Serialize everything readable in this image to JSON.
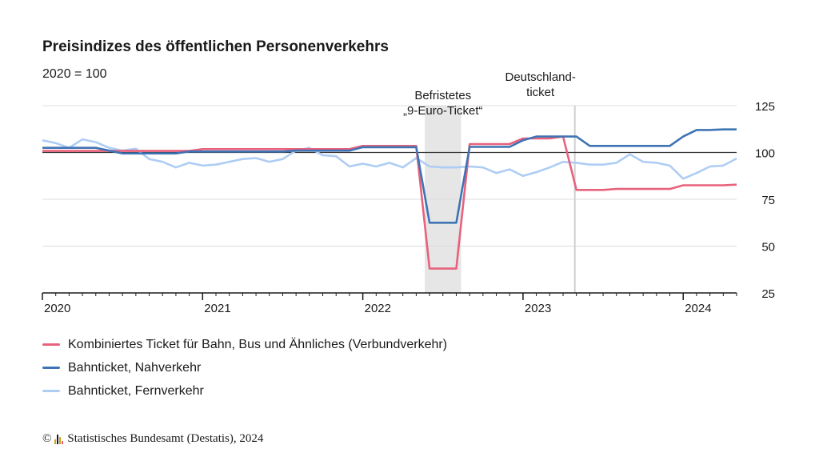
{
  "chart_data": {
    "type": "line",
    "title": "Preisindizes des öffentlichen Personenverkehrs",
    "subtitle": "2020 = 100",
    "x_start": "2020-01",
    "x_end": "2024-05",
    "x_ticks": [
      "2020",
      "2021",
      "2022",
      "2023",
      "2024"
    ],
    "ylim": [
      25,
      125
    ],
    "y_ticks": [
      25,
      50,
      75,
      100,
      125
    ],
    "reference_line": 100,
    "grid": true,
    "legend_position": "bottom-left",
    "annotations": [
      {
        "label": "Befristetes\n„9-Euro-Ticket“",
        "type": "band",
        "from": "2022-06",
        "to": "2022-08"
      },
      {
        "label": "Deutschland-\nticket",
        "type": "line",
        "at": "2023-05"
      }
    ],
    "series": [
      {
        "name": "Kombiniertes Ticket für Bahn, Bus und Ähnliches (Verbundverkehr)",
        "color": "#e8627c",
        "values": [
          100.8,
          100.8,
          100.8,
          100.8,
          100.8,
          100.8,
          100.8,
          100.8,
          100.8,
          100.8,
          100.8,
          100.8,
          101.8,
          101.8,
          101.8,
          101.8,
          101.8,
          101.8,
          101.8,
          101.8,
          101.8,
          101.8,
          101.8,
          101.8,
          103.5,
          103.5,
          103.5,
          103.5,
          103.5,
          38,
          38,
          38,
          104.5,
          104.5,
          104.5,
          104.5,
          107.5,
          107.5,
          107.5,
          108.5,
          80,
          80,
          80,
          80.5,
          80.5,
          80.5,
          80.5,
          80.5,
          82.5,
          82.5,
          82.5,
          82.5,
          82.8
        ]
      },
      {
        "name": "Bahnticket, Nahverkehr",
        "color": "#3f74b4",
        "values": [
          102.5,
          102.5,
          102.5,
          102.5,
          102.5,
          101,
          99.5,
          99.5,
          99.5,
          99.5,
          99.5,
          100.5,
          100.5,
          100.5,
          100.5,
          100.5,
          100.5,
          100.5,
          100.5,
          101,
          101,
          101,
          101,
          101,
          102.8,
          102.8,
          102.8,
          102.8,
          102.8,
          62.5,
          62.5,
          62.5,
          103,
          103,
          103,
          103,
          106.5,
          108.5,
          108.5,
          108.5,
          108.5,
          103.5,
          103.5,
          103.5,
          103.5,
          103.5,
          103.5,
          103.5,
          108.5,
          112,
          112,
          112.3,
          112.3
        ]
      },
      {
        "name": "Bahnticket, Fernverkehr",
        "color": "#afcdf4",
        "values": [
          106.5,
          105,
          102.5,
          107,
          105.5,
          102.5,
          101,
          102,
          96.5,
          95,
          92,
          94.5,
          93,
          93.5,
          95,
          96.5,
          97,
          95,
          96.5,
          101,
          102.5,
          98.5,
          98,
          92.5,
          94,
          92.5,
          94.5,
          92,
          97,
          92.5,
          92,
          92,
          92.5,
          92,
          89,
          91,
          87.5,
          89.5,
          92,
          95,
          94.5,
          93.5,
          93.5,
          94.5,
          99,
          95,
          94.5,
          93,
          86,
          89,
          92.5,
          93,
          96.8
        ]
      }
    ]
  },
  "footer": {
    "copyright": "©",
    "source": "Statistisches Bundesamt (Destatis), 2024",
    "logo_colors": [
      "#d4a017",
      "#1a1a1a",
      "#d4a017",
      "#e8627c"
    ]
  }
}
